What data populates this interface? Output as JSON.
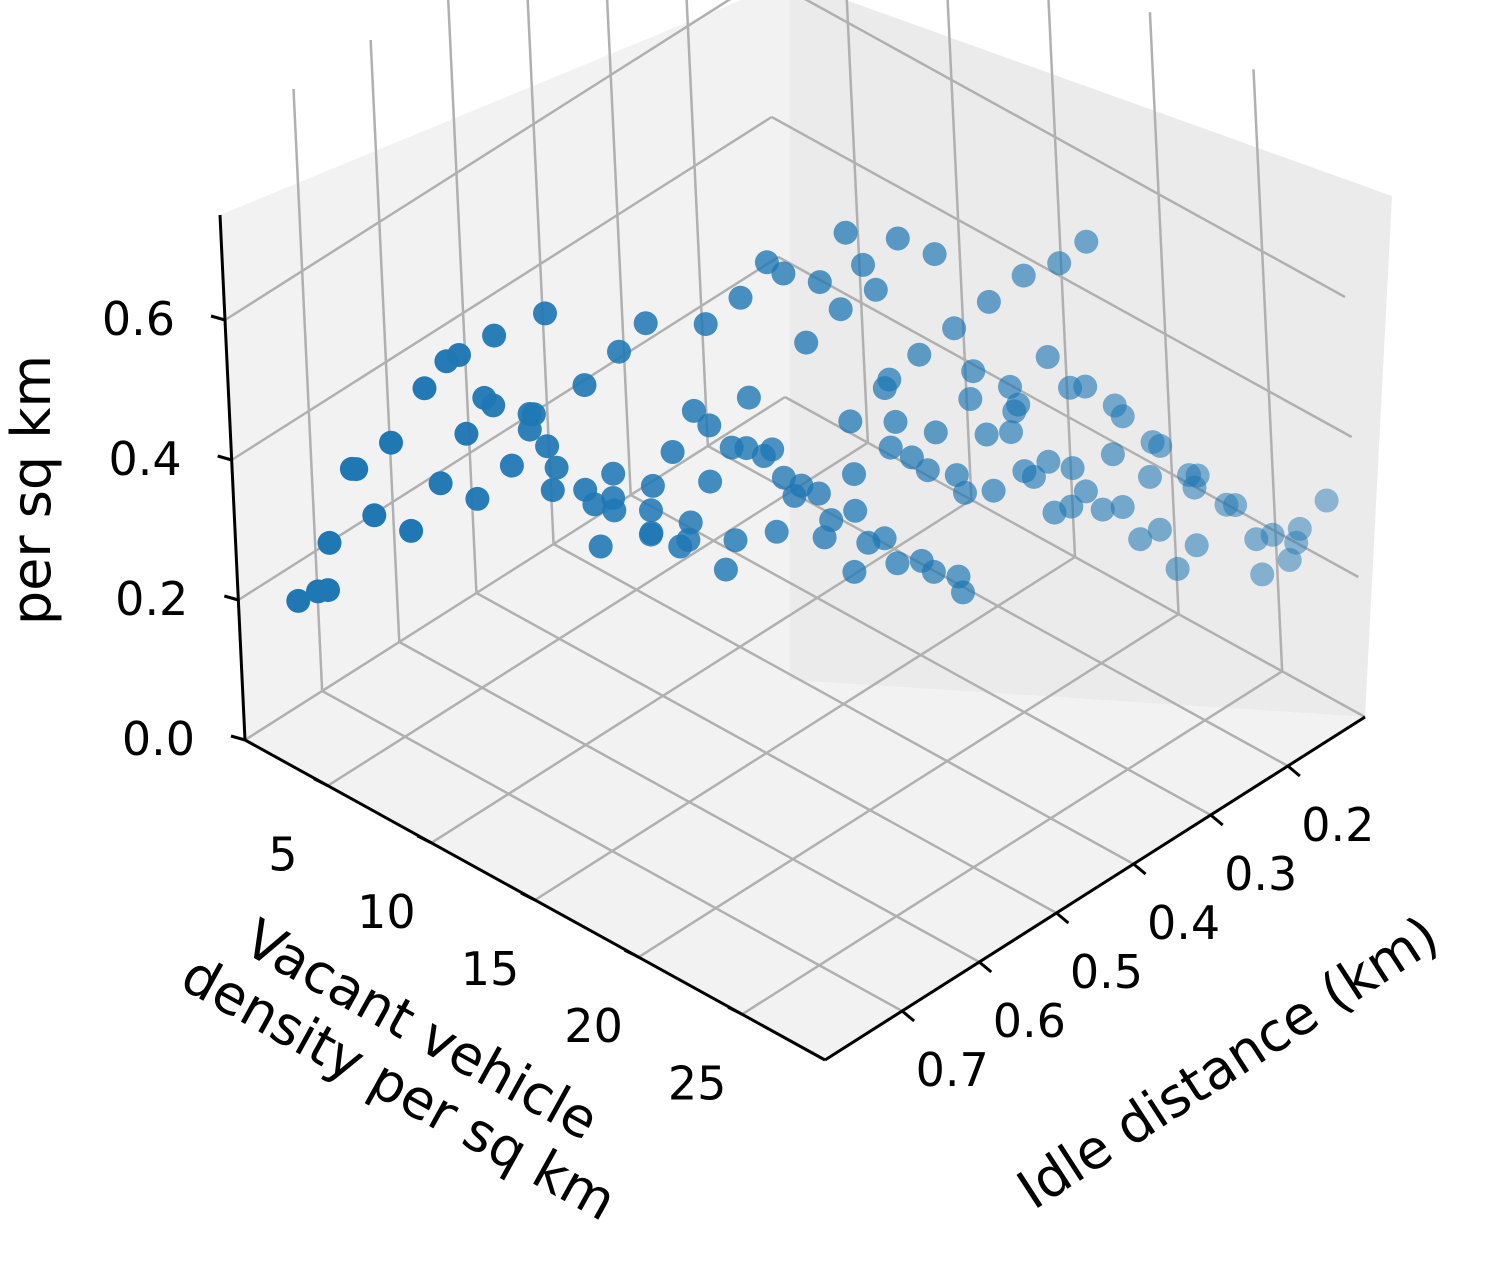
{
  "chart_data": {
    "type": "scatter",
    "projection": "3d",
    "title": "",
    "xlabel": [
      "Vacant vehicle",
      "density per sq km"
    ],
    "ylabel": "Idle distance (km)",
    "zlabel": "per sq km",
    "xlim": [
      1,
      29
    ],
    "ylim": [
      0.1,
      0.8
    ],
    "zlim": [
      0,
      0.75
    ],
    "xticks": [
      "5",
      "10",
      "15",
      "20",
      "25"
    ],
    "yticks": [
      "0.2",
      "0.3",
      "0.4",
      "0.5",
      "0.6",
      "0.7"
    ],
    "zticks": [
      "0.0",
      "0.2",
      "0.4",
      "0.6"
    ],
    "grid": true,
    "marker_color": "#1f77b4",
    "points": [
      [
        2,
        0.75,
        0.18
      ],
      [
        3,
        0.75,
        0.21
      ],
      [
        3.5,
        0.75,
        0.22
      ],
      [
        2.5,
        0.72,
        0.25
      ],
      [
        4,
        0.7,
        0.3
      ],
      [
        5,
        0.68,
        0.28
      ],
      [
        3,
        0.7,
        0.35
      ],
      [
        5,
        0.64,
        0.32
      ],
      [
        4,
        0.72,
        0.38
      ],
      [
        6,
        0.62,
        0.3
      ],
      [
        5,
        0.7,
        0.42
      ],
      [
        7,
        0.6,
        0.35
      ],
      [
        6,
        0.63,
        0.4
      ],
      [
        7,
        0.62,
        0.45
      ],
      [
        8,
        0.58,
        0.38
      ],
      [
        9,
        0.56,
        0.32
      ],
      [
        8,
        0.6,
        0.44
      ],
      [
        10,
        0.55,
        0.3
      ],
      [
        11,
        0.53,
        0.27
      ],
      [
        12,
        0.52,
        0.26
      ],
      [
        10,
        0.58,
        0.5
      ],
      [
        11,
        0.56,
        0.55
      ],
      [
        12,
        0.55,
        0.6
      ],
      [
        13,
        0.5,
        0.58
      ],
      [
        14,
        0.48,
        0.62
      ],
      [
        15,
        0.45,
        0.65
      ],
      [
        16,
        0.43,
        0.64
      ],
      [
        15,
        0.47,
        0.68
      ],
      [
        17,
        0.4,
        0.66
      ],
      [
        18,
        0.38,
        0.7
      ],
      [
        19,
        0.36,
        0.68
      ],
      [
        17,
        0.42,
        0.72
      ],
      [
        13,
        0.45,
        0.44
      ],
      [
        14,
        0.46,
        0.38
      ],
      [
        15,
        0.44,
        0.34
      ],
      [
        16,
        0.43,
        0.3
      ],
      [
        17,
        0.41,
        0.27
      ],
      [
        18,
        0.4,
        0.25
      ],
      [
        19,
        0.38,
        0.24
      ],
      [
        20,
        0.37,
        0.22
      ],
      [
        16,
        0.4,
        0.42
      ],
      [
        17,
        0.38,
        0.47
      ],
      [
        18,
        0.36,
        0.52
      ],
      [
        19,
        0.34,
        0.56
      ],
      [
        20,
        0.32,
        0.6
      ],
      [
        21,
        0.3,
        0.64
      ],
      [
        22,
        0.28,
        0.66
      ],
      [
        23,
        0.27,
        0.7
      ],
      [
        22,
        0.3,
        0.54
      ],
      [
        23,
        0.28,
        0.5
      ],
      [
        24,
        0.26,
        0.46
      ],
      [
        25,
        0.24,
        0.42
      ],
      [
        26,
        0.22,
        0.38
      ],
      [
        27,
        0.2,
        0.34
      ],
      [
        28,
        0.18,
        0.3
      ],
      [
        28,
        0.16,
        0.25
      ],
      [
        27,
        0.17,
        0.22
      ],
      [
        26,
        0.15,
        0.24
      ],
      [
        25,
        0.16,
        0.28
      ],
      [
        24,
        0.18,
        0.32
      ],
      [
        20,
        0.3,
        0.4
      ],
      [
        21,
        0.28,
        0.36
      ],
      [
        22,
        0.26,
        0.32
      ],
      [
        23,
        0.24,
        0.3
      ],
      [
        24,
        0.22,
        0.27
      ],
      [
        25,
        0.2,
        0.25
      ],
      [
        21,
        0.32,
        0.46
      ],
      [
        22,
        0.34,
        0.5
      ],
      [
        18,
        0.45,
        0.36
      ],
      [
        19,
        0.44,
        0.33
      ],
      [
        20,
        0.42,
        0.3
      ],
      [
        21,
        0.4,
        0.28
      ],
      [
        12,
        0.6,
        0.42
      ],
      [
        13,
        0.58,
        0.37
      ],
      [
        14,
        0.56,
        0.33
      ],
      [
        15,
        0.54,
        0.29
      ],
      [
        9,
        0.62,
        0.47
      ],
      [
        10,
        0.62,
        0.41
      ],
      [
        11,
        0.6,
        0.36
      ],
      [
        12,
        0.62,
        0.33
      ],
      [
        6,
        0.68,
        0.5
      ],
      [
        7,
        0.66,
        0.55
      ],
      [
        8,
        0.64,
        0.58
      ],
      [
        9,
        0.6,
        0.6
      ],
      [
        16,
        0.5,
        0.45
      ],
      [
        17,
        0.5,
        0.4
      ],
      [
        18,
        0.49,
        0.35
      ],
      [
        19,
        0.48,
        0.31
      ],
      [
        14,
        0.4,
        0.5
      ],
      [
        15,
        0.38,
        0.55
      ],
      [
        16,
        0.36,
        0.58
      ],
      [
        24,
        0.2,
        0.2
      ],
      [
        23,
        0.22,
        0.24
      ],
      [
        22,
        0.24,
        0.28
      ],
      [
        21,
        0.25,
        0.33
      ],
      [
        25,
        0.3,
        0.45
      ],
      [
        26,
        0.28,
        0.42
      ],
      [
        27,
        0.25,
        0.4
      ],
      [
        24,
        0.33,
        0.38
      ],
      [
        23,
        0.35,
        0.42
      ],
      [
        13,
        0.52,
        0.47
      ],
      [
        14,
        0.5,
        0.42
      ],
      [
        10,
        0.5,
        0.3
      ],
      [
        11,
        0.48,
        0.25
      ],
      [
        12,
        0.45,
        0.22
      ],
      [
        8,
        0.5,
        0.25
      ],
      [
        9,
        0.48,
        0.2
      ],
      [
        7,
        0.55,
        0.28
      ],
      [
        20,
        0.5,
        0.48
      ],
      [
        19,
        0.52,
        0.45
      ],
      [
        18,
        0.55,
        0.4
      ],
      [
        25,
        0.35,
        0.58
      ],
      [
        26,
        0.32,
        0.55
      ],
      [
        27,
        0.3,
        0.5
      ],
      [
        22,
        0.4,
        0.55
      ],
      [
        21,
        0.42,
        0.5
      ],
      [
        17,
        0.35,
        0.35
      ],
      [
        18,
        0.32,
        0.32
      ],
      [
        19,
        0.3,
        0.3
      ],
      [
        15,
        0.6,
        0.5
      ],
      [
        16,
        0.58,
        0.46
      ],
      [
        6,
        0.55,
        0.35
      ],
      [
        5,
        0.58,
        0.4
      ],
      [
        4,
        0.6,
        0.45
      ],
      [
        26,
        0.1,
        0.2
      ],
      [
        27,
        0.12,
        0.25
      ],
      [
        28,
        0.11,
        0.3
      ],
      [
        20,
        0.25,
        0.25
      ],
      [
        19,
        0.26,
        0.3
      ],
      [
        18,
        0.28,
        0.35
      ],
      [
        9,
        0.4,
        0.3
      ],
      [
        10,
        0.38,
        0.27
      ],
      [
        11,
        0.36,
        0.23
      ],
      [
        14,
        0.3,
        0.28
      ],
      [
        15,
        0.28,
        0.25
      ],
      [
        16,
        0.26,
        0.22
      ],
      [
        23,
        0.42,
        0.62
      ],
      [
        24,
        0.4,
        0.6
      ],
      [
        20,
        0.45,
        0.58
      ],
      [
        21,
        0.47,
        0.55
      ]
    ]
  }
}
